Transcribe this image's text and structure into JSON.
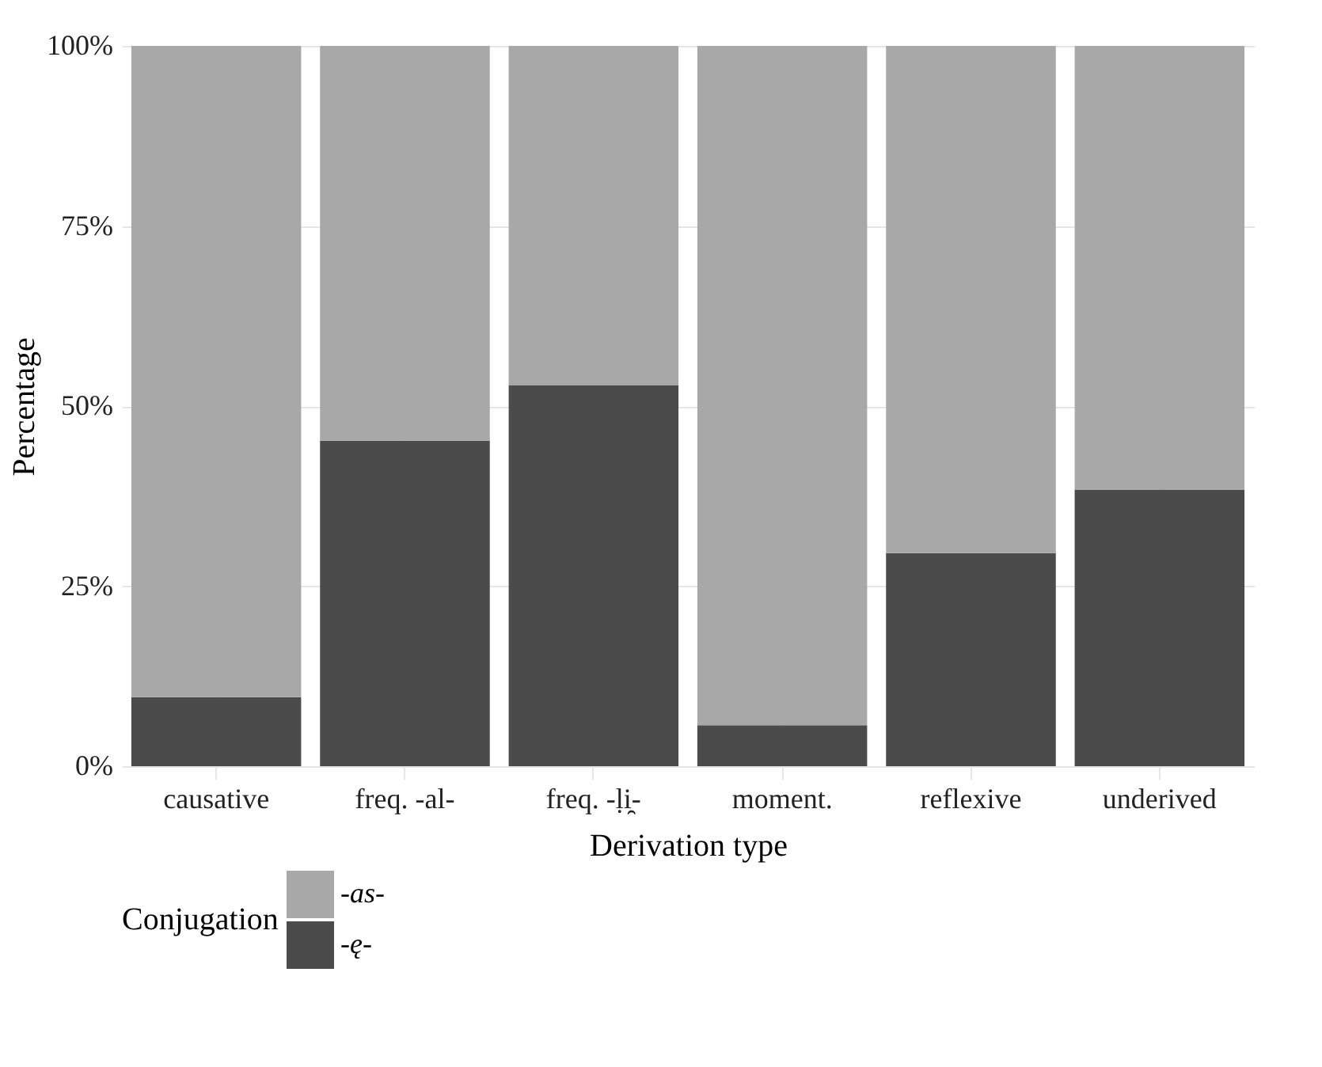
{
  "chart_data": {
    "type": "bar",
    "stacked": true,
    "xlabel": "Derivation type",
    "ylabel": "Percentage",
    "legend_title": "Conjugation",
    "categories": [
      "causative",
      "freq. -al-",
      "freq. -ḷi̯-",
      "moment.",
      "reflexive",
      "underived"
    ],
    "series": [
      {
        "name": "-ę-",
        "color": "#4b4b4b",
        "values": [
          9.6,
          45.2,
          52.9,
          5.7,
          29.6,
          38.4
        ]
      },
      {
        "name": "-as-",
        "color": "#a8a8a8",
        "values": [
          90.4,
          54.8,
          47.1,
          94.3,
          70.4,
          61.6
        ]
      }
    ],
    "ylim": [
      0,
      100
    ],
    "yticks": [
      {
        "value": 0,
        "label": "0%"
      },
      {
        "value": 25,
        "label": "25%"
      },
      {
        "value": 50,
        "label": "50%"
      },
      {
        "value": 75,
        "label": "75%"
      },
      {
        "value": 100,
        "label": "100%"
      }
    ],
    "grid": true,
    "legend": "bottom left"
  }
}
